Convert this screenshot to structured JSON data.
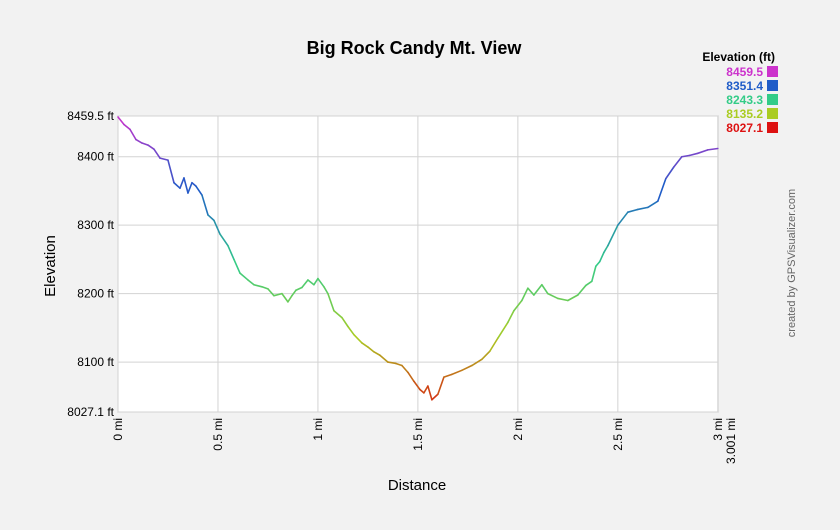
{
  "chart_data": {
    "type": "line",
    "title": "Big Rock Candy Mt. View",
    "xlabel": "Distance",
    "ylabel": "Elevation",
    "xlim": [
      0,
      3.001
    ],
    "ylim": [
      8027.1,
      8459.5
    ],
    "x_ticks": [
      {
        "value": 0,
        "label": "0 mi"
      },
      {
        "value": 0.5,
        "label": "0.5 mi"
      },
      {
        "value": 1,
        "label": "1 mi"
      },
      {
        "value": 1.5,
        "label": "1.5 mi"
      },
      {
        "value": 2,
        "label": "2 mi"
      },
      {
        "value": 2.5,
        "label": "2.5 mi"
      },
      {
        "value": 3,
        "label": "3 mi"
      }
    ],
    "x_end_label": "3.001 mi",
    "y_ticks": [
      {
        "value": 8459.5,
        "label": "8459.5 ft"
      },
      {
        "value": 8400,
        "label": "8400 ft"
      },
      {
        "value": 8300,
        "label": "8300 ft"
      },
      {
        "value": 8200,
        "label": "8200 ft"
      },
      {
        "value": 8100,
        "label": "8100 ft"
      },
      {
        "value": 8027.1,
        "label": "8027.1 ft"
      }
    ],
    "grid": true,
    "legend": {
      "title": "Elevation (ft)",
      "placement": "top-right",
      "entries": [
        {
          "label": "8459.5",
          "color": "#cc33cc"
        },
        {
          "label": "8351.4",
          "color": "#1f5cc8"
        },
        {
          "label": "8243.3",
          "color": "#33cc88"
        },
        {
          "label": "8135.2",
          "color": "#aacc22"
        },
        {
          "label": "8027.1",
          "color": "#dd1111"
        }
      ]
    },
    "credit": "created by GPSVisualizer.com",
    "series": [
      {
        "x": [
          0,
          0.03,
          0.06,
          0.09,
          0.12,
          0.15,
          0.18,
          0.21,
          0.25,
          0.28,
          0.31,
          0.33,
          0.35,
          0.37,
          0.39,
          0.42,
          0.45,
          0.48,
          0.51,
          0.55,
          0.58,
          0.61,
          0.65,
          0.68,
          0.72,
          0.75,
          0.78,
          0.82,
          0.85,
          0.87,
          0.89,
          0.92,
          0.95,
          0.98,
          1.0,
          1.03,
          1.05,
          1.08,
          1.12,
          1.15,
          1.18,
          1.22,
          1.25,
          1.28,
          1.31,
          1.35,
          1.39,
          1.42,
          1.45,
          1.48,
          1.51,
          1.53,
          1.55,
          1.57,
          1.6,
          1.63,
          1.67,
          1.72,
          1.77,
          1.82,
          1.86,
          1.9,
          1.95,
          1.98,
          2.02,
          2.05,
          2.08,
          2.12,
          2.15,
          2.2,
          2.25,
          2.3,
          2.34,
          2.37,
          2.39,
          2.41,
          2.43,
          2.45,
          2.5,
          2.55,
          2.6,
          2.65,
          2.7,
          2.74,
          2.78,
          2.82,
          2.86,
          2.9,
          2.95,
          3.0
        ],
        "y": [
          8458,
          8447,
          8440,
          8425,
          8420,
          8417,
          8411,
          8398,
          8395,
          8362,
          8354,
          8369,
          8347,
          8362,
          8357,
          8344,
          8315,
          8307,
          8287,
          8270,
          8250,
          8230,
          8220,
          8213,
          8210,
          8207,
          8197,
          8200,
          8188,
          8197,
          8205,
          8209,
          8220,
          8213,
          8222,
          8210,
          8200,
          8175,
          8165,
          8152,
          8140,
          8128,
          8122,
          8115,
          8110,
          8100,
          8098,
          8095,
          8085,
          8072,
          8060,
          8055,
          8065,
          8045,
          8053,
          8078,
          8082,
          8088,
          8095,
          8104,
          8116,
          8135,
          8158,
          8175,
          8190,
          8208,
          8198,
          8213,
          8200,
          8193,
          8190,
          8198,
          8212,
          8218,
          8240,
          8247,
          8260,
          8270,
          8300,
          8319,
          8323,
          8326,
          8335,
          8368,
          8385,
          8400,
          8402,
          8405,
          8410,
          8412
        ]
      }
    ]
  }
}
